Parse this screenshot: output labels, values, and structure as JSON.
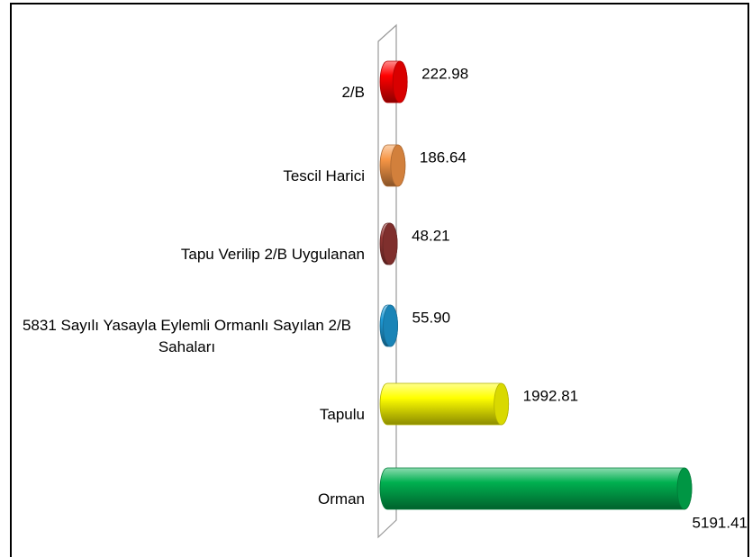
{
  "chart_data": {
    "type": "bar",
    "orientation": "horizontal",
    "categories": [
      "2/B",
      "Tescil Harici",
      "Tapu Verilip 2/B Uygulanan",
      "5831 Sayılı Yasayla Eylemli Ormanlı Sayılan 2/B Sahaları",
      "Tapulu",
      "Orman"
    ],
    "values": [
      222.98,
      186.64,
      48.21,
      55.9,
      1992.81,
      5191.41
    ],
    "value_labels": [
      "222.98",
      "186.64",
      "48.21",
      "55.90",
      "1992.81",
      "5191.41"
    ],
    "colors": [
      "#ff0000",
      "#f79646",
      "#953735",
      "#1f9bd7",
      "#ffff00",
      "#00b050"
    ]
  }
}
